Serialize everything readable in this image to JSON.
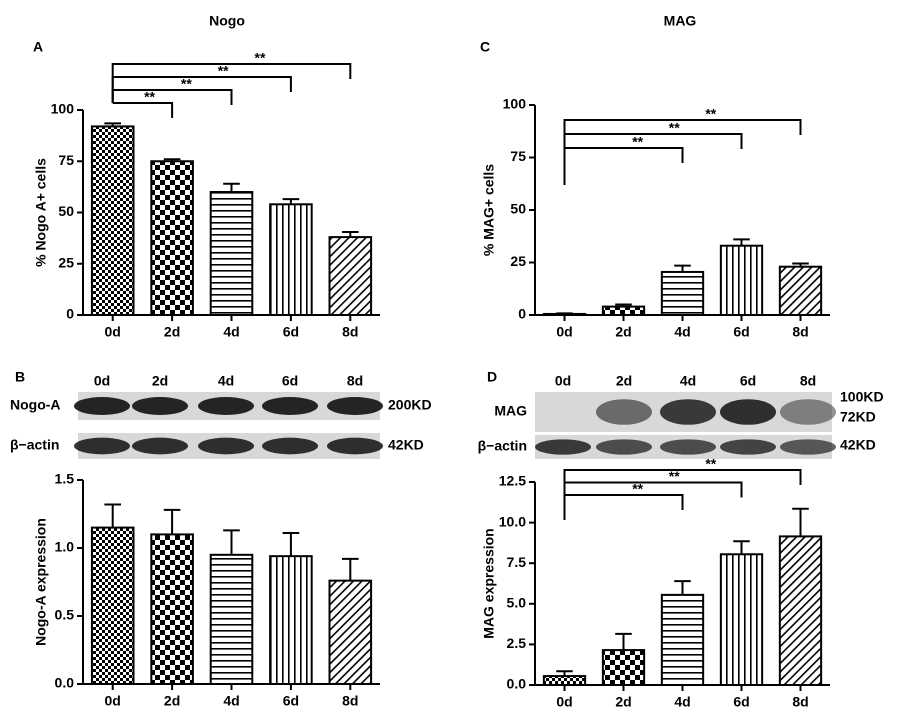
{
  "chart_data": [
    {
      "type": "bar",
      "panel": "A",
      "title": "Nogo",
      "ylabel": "% Nogo A+ cells",
      "categories": [
        "0d",
        "2d",
        "4d",
        "6d",
        "8d"
      ],
      "values": [
        92,
        75,
        60,
        54,
        38
      ],
      "errors": [
        1.5,
        1,
        4,
        2.5,
        2.5
      ],
      "ylim": [
        0,
        100
      ],
      "yticks": [
        0,
        25,
        50,
        75,
        100
      ],
      "significance": [
        {
          "text": "**",
          "between": [
            "0d",
            "2d"
          ]
        },
        {
          "text": "**",
          "between": [
            "0d",
            "4d"
          ]
        },
        {
          "text": "**",
          "between": [
            "0d",
            "6d"
          ]
        },
        {
          "text": "**",
          "between": [
            "0d",
            "8d"
          ]
        }
      ]
    },
    {
      "type": "bar",
      "ylabel": "Nogo-A expression",
      "categories": [
        "0d",
        "2d",
        "4d",
        "6d",
        "8d"
      ],
      "values": [
        1.15,
        1.1,
        0.95,
        0.94,
        0.76
      ],
      "errors": [
        0.17,
        0.18,
        0.18,
        0.17,
        0.16
      ],
      "ylim": [
        0,
        1.5
      ],
      "yticks": [
        {
          "value": 0,
          "label": "0.0"
        },
        0.5,
        {
          "value": 1,
          "label": "1.0"
        },
        1.5
      ],
      "significance": []
    },
    {
      "type": "bar",
      "panel": "C",
      "title": "MAG",
      "ylabel": "% MAG+ cells",
      "categories": [
        "0d",
        "2d",
        "4d",
        "6d",
        "8d"
      ],
      "values": [
        0.5,
        4,
        20.5,
        33,
        23
      ],
      "errors": [
        0.3,
        1,
        3,
        3,
        1.5
      ],
      "ylim": [
        0,
        100
      ],
      "yticks": [
        0,
        25,
        50,
        75,
        100
      ],
      "significance": [
        {
          "text": "**",
          "between": [
            "0d",
            "4d"
          ]
        },
        {
          "text": "**",
          "between": [
            "0d",
            "6d"
          ]
        },
        {
          "text": "**",
          "between": [
            "0d",
            "8d"
          ]
        }
      ]
    },
    {
      "type": "bar",
      "ylabel": "MAG expression",
      "categories": [
        "0d",
        "2d",
        "4d",
        "6d",
        "8d"
      ],
      "values": [
        0.55,
        2.15,
        5.55,
        8.05,
        9.15
      ],
      "errors": [
        0.3,
        1.0,
        0.85,
        0.8,
        1.7
      ],
      "ylim": [
        0,
        12.5
      ],
      "yticks": [
        {
          "value": 0,
          "label": "0.0"
        },
        2.5,
        {
          "value": 5,
          "label": "5.0"
        },
        7.5,
        {
          "value": 10,
          "label": "10.0"
        },
        12.5
      ],
      "significance": [
        {
          "text": "**",
          "between": [
            "0d",
            "4d"
          ]
        },
        {
          "text": "**",
          "between": [
            "0d",
            "6d"
          ]
        },
        {
          "text": "**",
          "between": [
            "0d",
            "8d"
          ]
        }
      ]
    }
  ],
  "blots": [
    {
      "panel": "B",
      "lanes": [
        "0d",
        "2d",
        "4d",
        "6d",
        "8d"
      ],
      "rows": [
        {
          "label": "Nogo-A",
          "sizes": [
            "200KD"
          ]
        },
        {
          "label": "β−actin",
          "sizes": [
            "42KD"
          ]
        }
      ]
    },
    {
      "panel": "D",
      "lanes": [
        "0d",
        "2d",
        "4d",
        "6d",
        "8d"
      ],
      "rows": [
        {
          "label": "MAG",
          "sizes": [
            "100KD",
            "72KD"
          ]
        },
        {
          "label": "β−actin",
          "sizes": [
            "42KD"
          ]
        }
      ]
    }
  ]
}
